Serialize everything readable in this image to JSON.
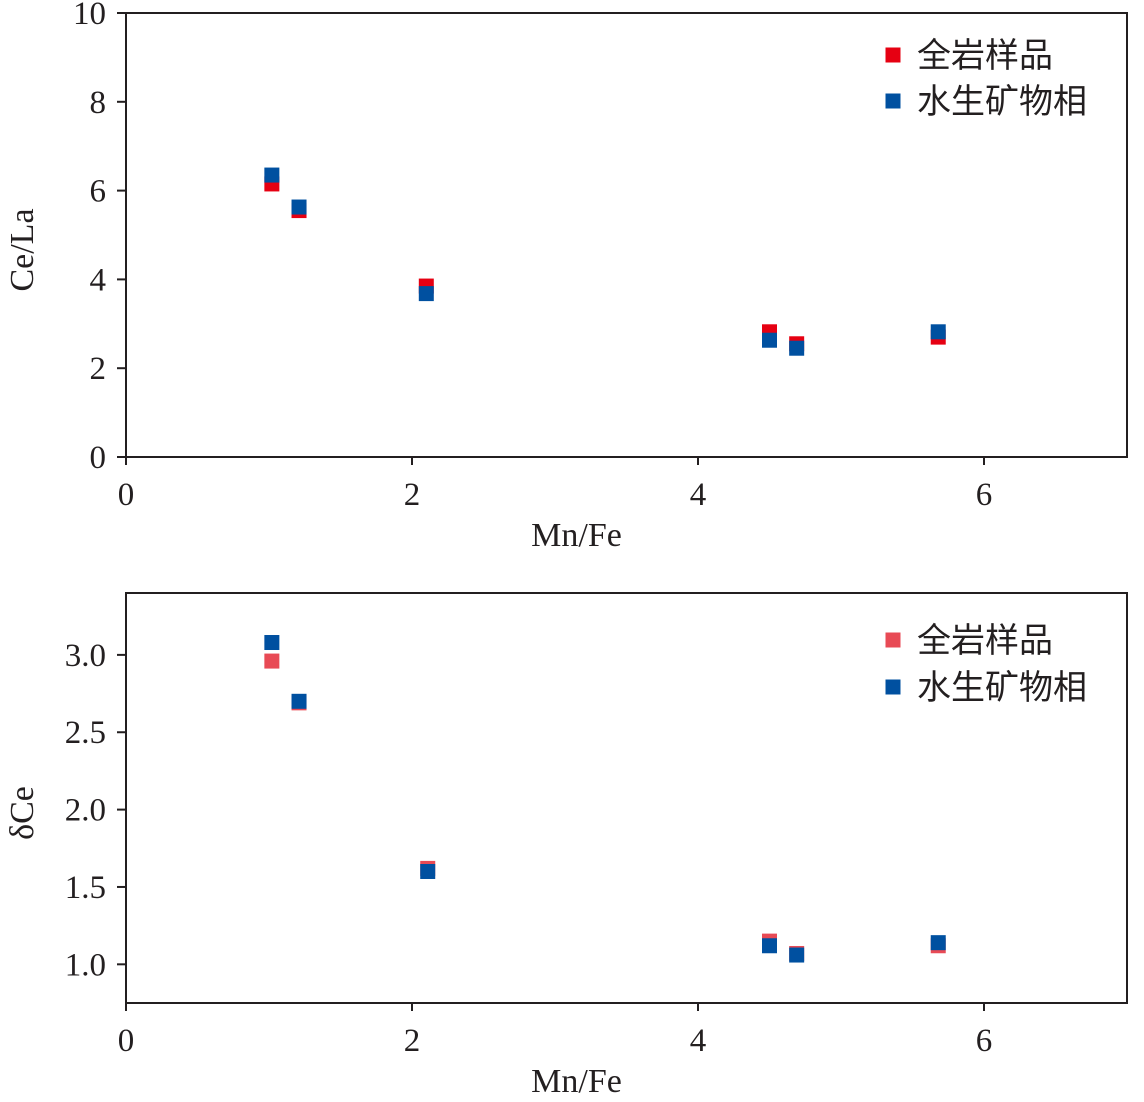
{
  "chart_data": [
    {
      "type": "scatter",
      "xlabel": "Mn/Fe",
      "ylabel": "Ce/La",
      "xlim": [
        0,
        7
      ],
      "ylim": [
        0,
        10
      ],
      "xticks": [
        "0",
        "2",
        "4",
        "6"
      ],
      "yticks": [
        "0",
        "2",
        "4",
        "6",
        "8",
        "10"
      ],
      "grid": false,
      "legend_position": "top-right",
      "series": [
        {
          "name": "全岩样品",
          "color": "#e60012",
          "points": [
            [
              1.02,
              6.15
            ],
            [
              1.21,
              5.55
            ],
            [
              2.1,
              3.85
            ],
            [
              4.5,
              2.82
            ],
            [
              4.69,
              2.55
            ],
            [
              5.68,
              2.7
            ]
          ]
        },
        {
          "name": "水生矿物相",
          "color": "#0050a0",
          "points": [
            [
              1.02,
              6.35
            ],
            [
              1.21,
              5.63
            ],
            [
              2.1,
              3.68
            ],
            [
              4.5,
              2.63
            ],
            [
              4.69,
              2.45
            ],
            [
              5.68,
              2.82
            ]
          ]
        }
      ]
    },
    {
      "type": "scatter",
      "xlabel": "Mn/Fe",
      "ylabel": "δCe",
      "xlim": [
        0,
        7
      ],
      "ylim": [
        0.75,
        3.4
      ],
      "xticks": [
        "0",
        "2",
        "4",
        "6"
      ],
      "yticks": [
        "1.0",
        "1.5",
        "2.0",
        "2.5",
        "3.0"
      ],
      "grid": false,
      "legend_position": "top-right",
      "series": [
        {
          "name": "全岩样品",
          "color": "#e84a55",
          "points": [
            [
              1.02,
              2.96
            ],
            [
              1.21,
              2.69
            ],
            [
              2.11,
              1.62
            ],
            [
              4.5,
              1.15
            ],
            [
              4.69,
              1.07
            ],
            [
              5.68,
              1.12
            ]
          ]
        },
        {
          "name": "水生矿物相",
          "color": "#0050a0",
          "points": [
            [
              1.02,
              3.08
            ],
            [
              1.21,
              2.7
            ],
            [
              2.11,
              1.6
            ],
            [
              4.5,
              1.12
            ],
            [
              4.69,
              1.06
            ],
            [
              5.68,
              1.14
            ]
          ]
        }
      ]
    }
  ]
}
